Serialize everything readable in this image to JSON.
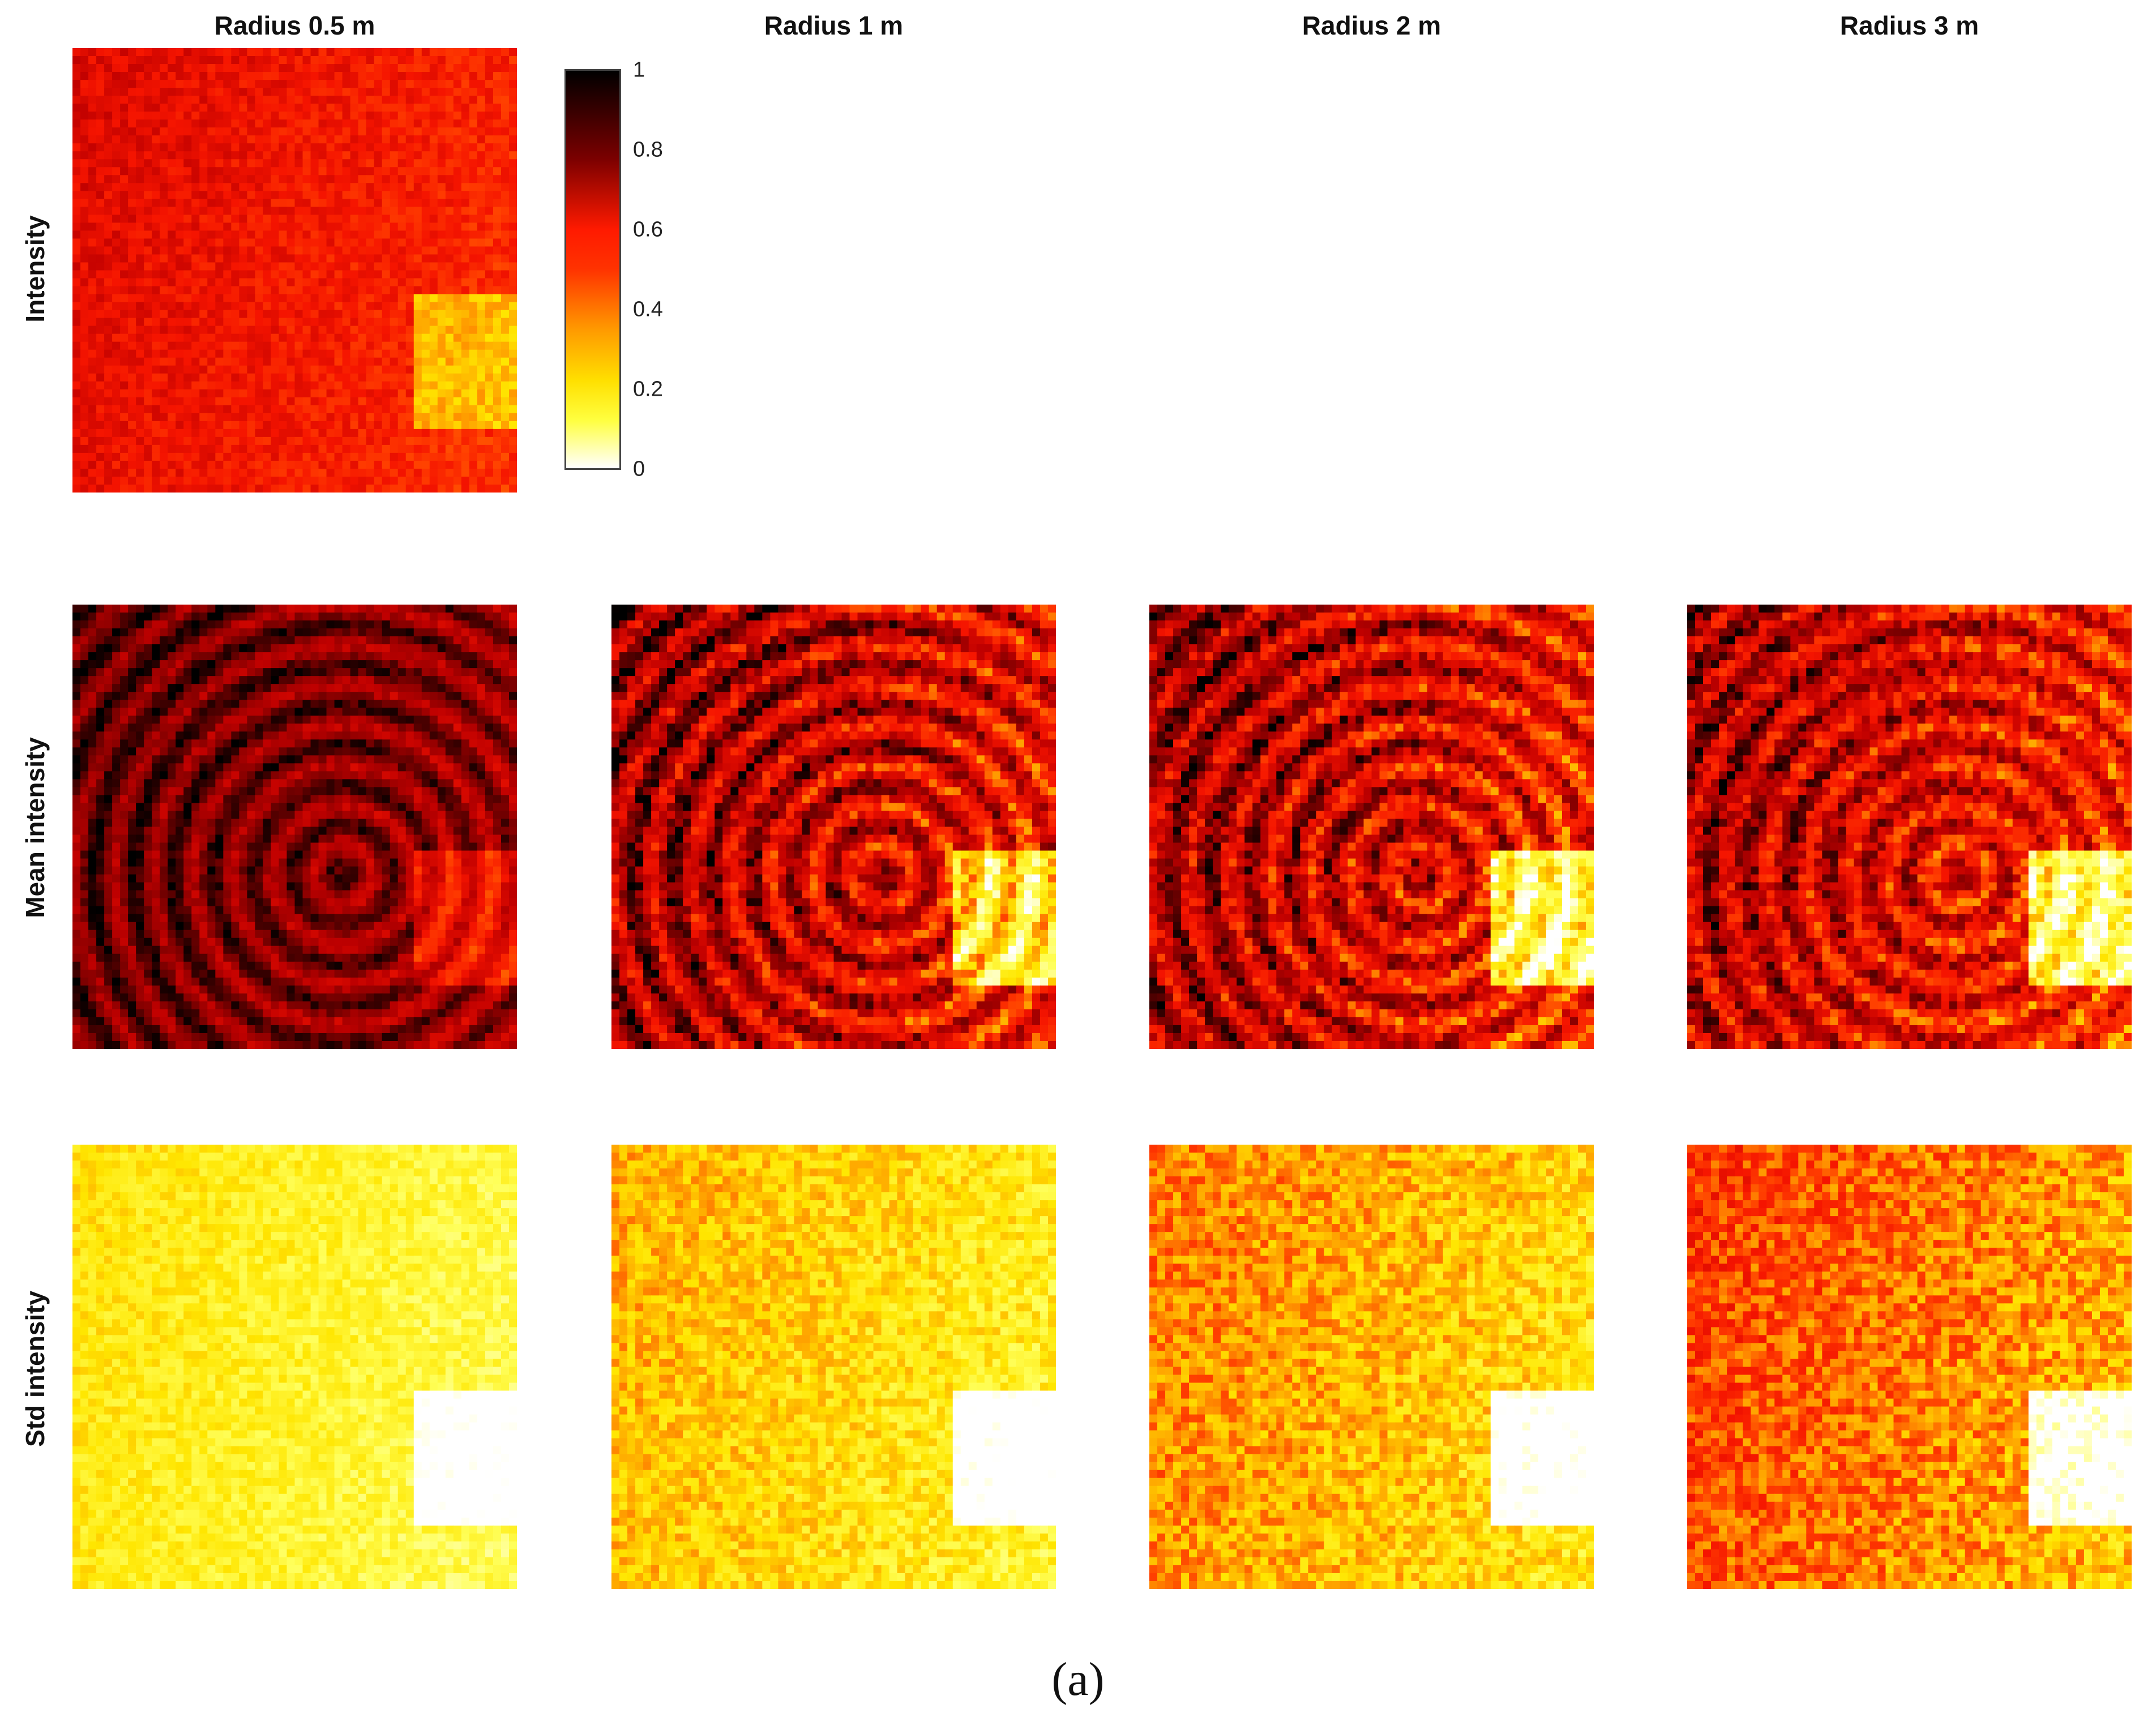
{
  "chart_data": {
    "type": "heatmap",
    "columns": [
      "Radius 0.5 m",
      "Radius 1 m",
      "Radius 2 m",
      "Radius 3 m"
    ],
    "rows": [
      "Intensity",
      "Mean intensity",
      "Std intensity"
    ],
    "panels": [
      {
        "row": 0,
        "col": 0,
        "base": 0.62,
        "variation": 0.1,
        "stripes": 0.0
      },
      {
        "row": 1,
        "col": 0,
        "base": 0.85,
        "variation": 0.08,
        "stripes": 0.1
      },
      {
        "row": 1,
        "col": 1,
        "base": 0.72,
        "variation": 0.18,
        "stripes": 0.15
      },
      {
        "row": 1,
        "col": 2,
        "base": 0.7,
        "variation": 0.2,
        "stripes": 0.14
      },
      {
        "row": 1,
        "col": 3,
        "base": 0.68,
        "variation": 0.2,
        "stripes": 0.12
      },
      {
        "row": 2,
        "col": 0,
        "base": 0.22,
        "variation": 0.1,
        "stripes": 0.0
      },
      {
        "row": 2,
        "col": 1,
        "base": 0.3,
        "variation": 0.14,
        "stripes": 0.0
      },
      {
        "row": 2,
        "col": 2,
        "base": 0.36,
        "variation": 0.16,
        "stripes": 0.0
      },
      {
        "row": 2,
        "col": 3,
        "base": 0.45,
        "variation": 0.18,
        "stripes": 0.0
      }
    ],
    "colormap": "hot (reversed)",
    "colorbar": {
      "min": 0,
      "max": 1,
      "ticks": [
        "1",
        "0.8",
        "0.6",
        "0.4",
        "0.2",
        "0"
      ]
    },
    "caption": "(a)"
  }
}
